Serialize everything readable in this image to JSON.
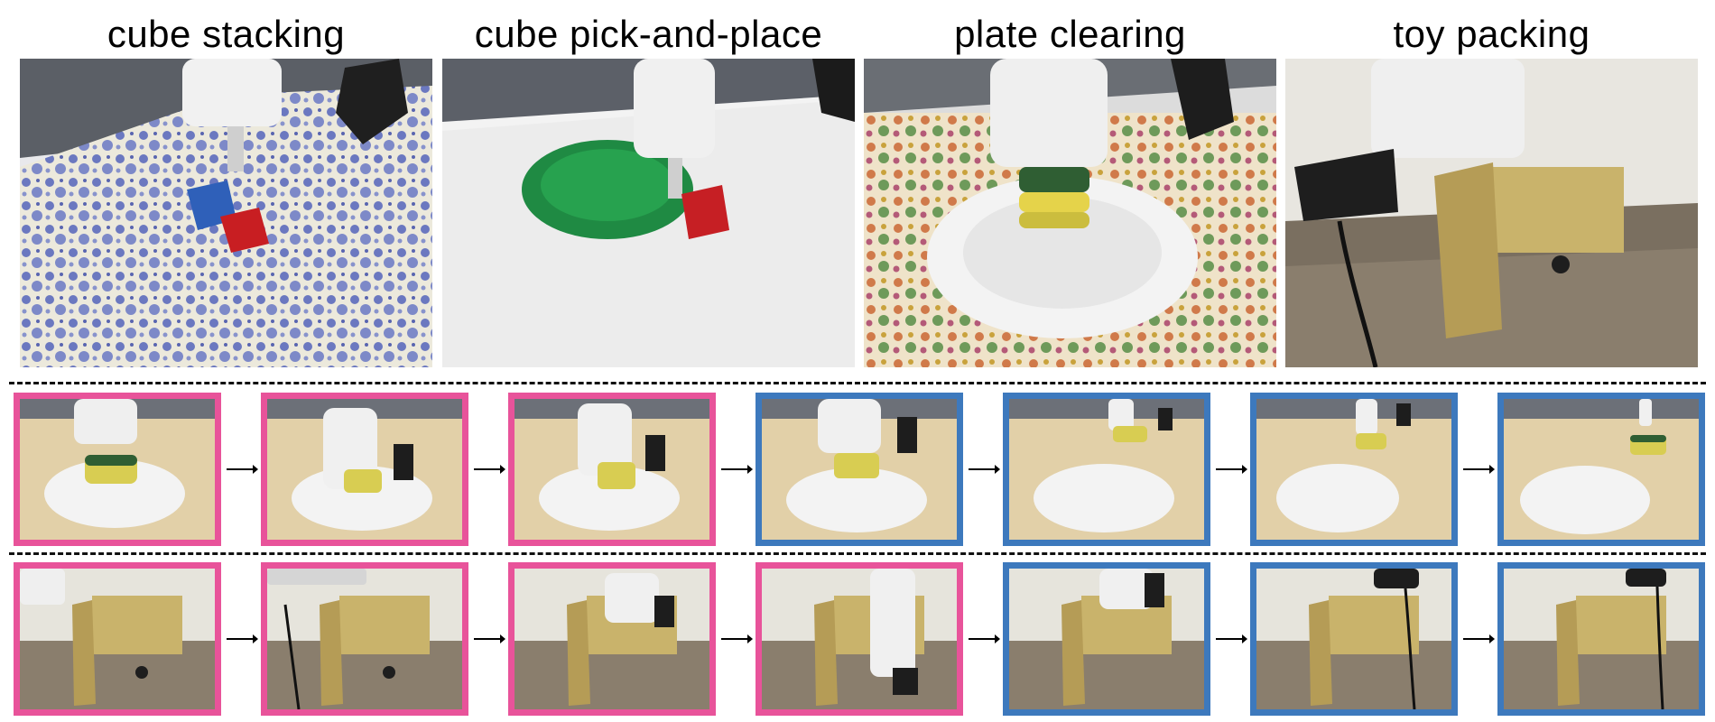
{
  "figure": {
    "task_titles": [
      "cube stacking",
      "cube pick-and-place",
      "plate clearing",
      "toy packing"
    ]
  },
  "colors": {
    "highlight_pink": "#e8539a",
    "highlight_blue": "#3d79bd"
  },
  "sequences": {
    "plate_clearing": [
      "pink",
      "pink",
      "pink",
      "blue",
      "blue",
      "blue",
      "blue"
    ],
    "toy_packing": [
      "pink",
      "pink",
      "pink",
      "pink",
      "blue",
      "blue",
      "blue"
    ]
  }
}
